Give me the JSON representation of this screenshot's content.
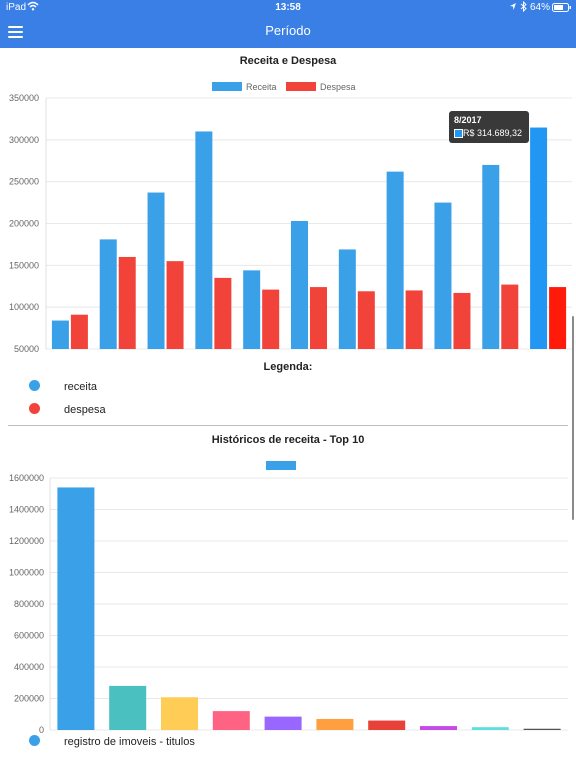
{
  "status_bar": {
    "device": "iPad",
    "time": "13:58",
    "battery": "64%",
    "icons": [
      "wifi-icon",
      "location-icon",
      "bluetooth-icon",
      "battery-icon"
    ]
  },
  "nav": {
    "title": "Período",
    "menu_icon": "hamburger-icon"
  },
  "colors": {
    "nav_bg": "#3a7fe6",
    "receita": "#3aa0e8",
    "despesa": "#f2433a",
    "highlight_receita": "#2196f3",
    "highlight_despesa": "#ff1a0a"
  },
  "chart1": {
    "title": "Receita e Despesa",
    "legend": [
      "Receita",
      "Despesa"
    ],
    "tooltip": {
      "title": "8/2017",
      "value": "R$ 314.689,32"
    }
  },
  "legend_section": {
    "title": "Legenda:",
    "items": [
      {
        "label": "receita",
        "color": "#3aa0e8"
      },
      {
        "label": "despesa",
        "color": "#f2433a"
      }
    ]
  },
  "chart2": {
    "title": "Históricos de receita - Top 10",
    "bottom_legend_label": "registro de imoveis - titulos"
  },
  "chart_data": [
    {
      "type": "bar",
      "title": "Receita e Despesa",
      "categories": [
        "",
        "",
        "",
        "",
        "",
        "",
        "",
        "",
        "",
        "",
        ""
      ],
      "series": [
        {
          "name": "Receita",
          "values": [
            84000,
            181000,
            237000,
            310000,
            144000,
            203000,
            169000,
            262000,
            225000,
            270000,
            314689.32
          ]
        },
        {
          "name": "Despesa",
          "values": [
            91000,
            160000,
            155000,
            135000,
            121000,
            124000,
            119000,
            120000,
            117000,
            127000,
            124000
          ]
        }
      ],
      "ylim": [
        50000,
        350000
      ],
      "yticks": [
        50000,
        100000,
        150000,
        200000,
        250000,
        300000,
        350000
      ],
      "legend_position": "top-center",
      "grid": true,
      "highlight_index": 10
    },
    {
      "type": "bar",
      "title": "Históricos de receita - Top 10",
      "values": [
        1540000,
        280000,
        208000,
        120000,
        85000,
        70000,
        60000,
        25000,
        18000,
        8000
      ],
      "colors": [
        "#3aa0e8",
        "#4bc0c0",
        "#ffcd56",
        "#ff6384",
        "#9966ff",
        "#ff9f40",
        "#e8413a",
        "#c44be8",
        "#5fe0e0",
        "#555555"
      ],
      "ylim": [
        0,
        1600000
      ],
      "yticks": [
        0,
        200000,
        400000,
        600000,
        800000,
        1000000,
        1200000,
        1400000,
        1600000
      ],
      "grid": true
    }
  ]
}
